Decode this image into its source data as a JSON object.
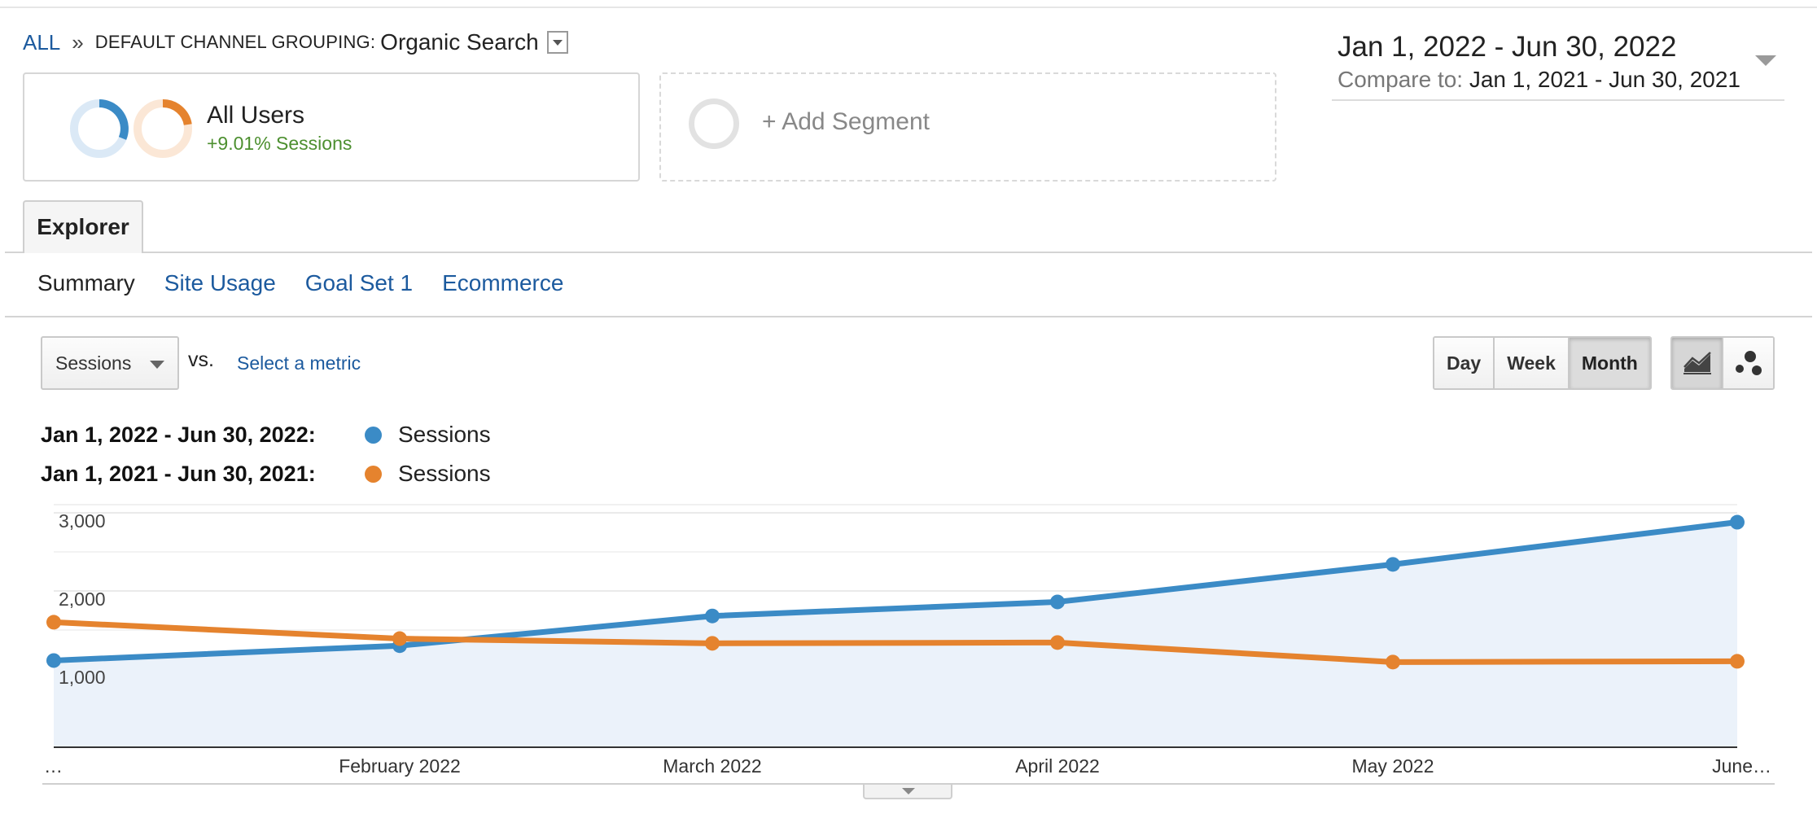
{
  "breadcrumb": {
    "root": "ALL",
    "separator": "»",
    "dimension_label": "DEFAULT CHANNEL GROUPING:",
    "dimension_value": "Organic Search"
  },
  "date_range": {
    "primary": "Jan 1, 2022 - Jun 30, 2022",
    "compare_label": "Compare to:",
    "compare_value": "Jan 1, 2021 - Jun 30, 2021"
  },
  "segments": {
    "active": {
      "name": "All Users",
      "subtitle": "+9.01% Sessions"
    },
    "add_label": "+ Add Segment"
  },
  "tabs": {
    "explorer": "Explorer"
  },
  "subtabs": [
    "Summary",
    "Site Usage",
    "Goal Set 1",
    "Ecommerce"
  ],
  "metric_selector": {
    "primary": "Sessions",
    "vs_label": "vs.",
    "secondary_placeholder": "Select a metric"
  },
  "granularity": {
    "options": [
      "Day",
      "Week",
      "Month"
    ],
    "selected": "Month"
  },
  "chart_types": {
    "icons": [
      "line-chart-icon",
      "motion-chart-icon"
    ],
    "selected": "line-chart-icon"
  },
  "legend": [
    {
      "range": "Jan 1, 2022 - Jun 30, 2022:",
      "metric": "Sessions",
      "color": "#3b8bc6"
    },
    {
      "range": "Jan 1, 2021 - Jun 30, 2021:",
      "metric": "Sessions",
      "color": "#e5832e"
    }
  ],
  "colors": {
    "primary_series": "#3b8bc6",
    "compare_series": "#e5832e",
    "area_fill": "#ebf2fa",
    "link": "#1c5a9e",
    "positive": "#4c8f2f"
  },
  "chart_data": {
    "type": "line",
    "x": [
      "…",
      "February 2022",
      "March 2022",
      "April 2022",
      "May 2022",
      "June…"
    ],
    "series": [
      {
        "name": "Sessions",
        "values": [
          1110,
          1300,
          1680,
          1860,
          2340,
          2880
        ]
      },
      {
        "name": "Sessions",
        "values": [
          1600,
          1390,
          1330,
          1340,
          1090,
          1100
        ]
      }
    ],
    "yticks": [
      1000,
      2000,
      3000
    ],
    "ytick_labels": [
      "1,000",
      "2,000",
      "3,000"
    ],
    "ylim": [
      0,
      3000
    ],
    "grid": true,
    "area_under_primary": true
  }
}
